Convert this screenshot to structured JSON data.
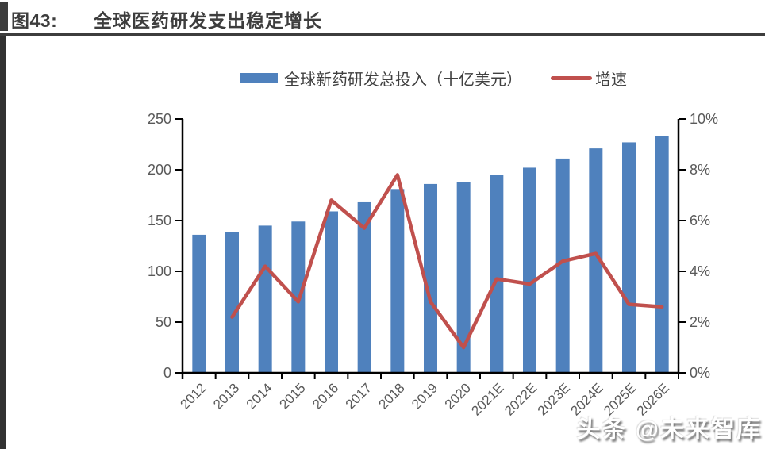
{
  "header": {
    "label": "图43:",
    "title": "全球医药研发支出稳定增长"
  },
  "legend": {
    "bars": "全球新药研发总投入（十亿美元）",
    "line": "增速"
  },
  "watermark": "头条 @未来智库",
  "colors": {
    "bar": "#4F81BD",
    "line": "#C0504D",
    "axis": "#000000",
    "tick_text": "#595959",
    "header_dark": "#3d3d3d"
  },
  "chart_data": {
    "type": "bar",
    "subtype": "bar+line combo, dual axis",
    "title": "全球医药研发支出稳定增长",
    "categories": [
      "2012",
      "2013",
      "2014",
      "2015",
      "2016",
      "2017",
      "2018",
      "2019",
      "2020",
      "2021E",
      "2022E",
      "2023E",
      "2024E",
      "2025E",
      "2026E"
    ],
    "series": [
      {
        "name": "全球新药研发总投入（十亿美元）",
        "type": "bar",
        "axis": "left",
        "values": [
          136,
          139,
          145,
          149,
          159,
          168,
          181,
          186,
          188,
          195,
          202,
          211,
          221,
          227,
          233
        ]
      },
      {
        "name": "增速",
        "type": "line",
        "axis": "right",
        "values": [
          null,
          2.2,
          4.2,
          2.8,
          6.8,
          5.7,
          7.8,
          2.8,
          1.0,
          3.7,
          3.5,
          4.4,
          4.7,
          2.7,
          2.6
        ]
      }
    ],
    "left_axis": {
      "min": 0,
      "max": 250,
      "ticks": [
        0,
        50,
        100,
        150,
        200,
        250
      ],
      "tick_labels": [
        "0",
        "50",
        "100",
        "150",
        "200",
        "250"
      ]
    },
    "right_axis": {
      "min": 0,
      "max": 10,
      "ticks": [
        0,
        2,
        4,
        6,
        8,
        10
      ],
      "tick_labels": [
        "0%",
        "2%",
        "4%",
        "6%",
        "8%",
        "10%"
      ]
    },
    "grid": false,
    "legend_position": "top",
    "x_label_rotation_deg": 45
  }
}
